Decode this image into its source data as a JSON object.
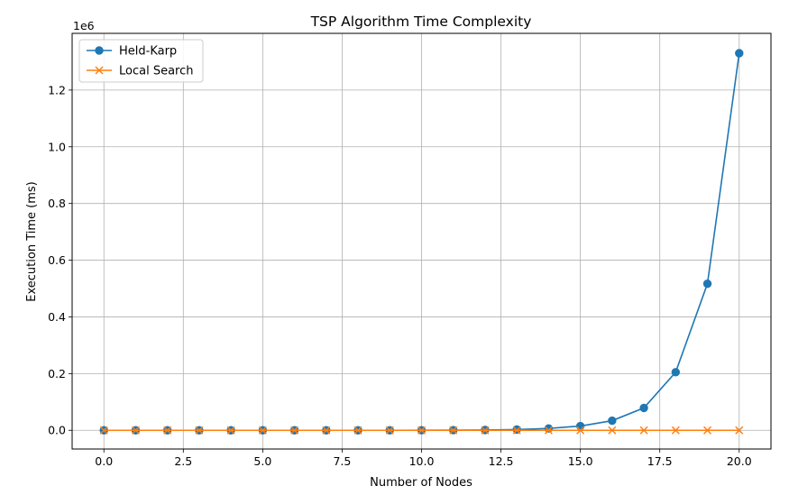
{
  "chart_data": {
    "type": "line",
    "title": "TSP Algorithm Time Complexity",
    "xlabel": "Number of Nodes",
    "ylabel": "Execution Time (ms)",
    "y_offset_label": "1e6",
    "xlim": [
      -1,
      21
    ],
    "ylim": [
      -0.066,
      1.4
    ],
    "xticks": [
      0,
      2.5,
      5,
      7.5,
      10,
      12.5,
      15,
      17.5,
      20
    ],
    "xtick_labels": [
      "0.0",
      "2.5",
      "5.0",
      "7.5",
      "10.0",
      "12.5",
      "15.0",
      "17.5",
      "20.0"
    ],
    "yticks": [
      0,
      0.2,
      0.4,
      0.6,
      0.8,
      1.0,
      1.2
    ],
    "ytick_labels": [
      "0.0",
      "0.2",
      "0.4",
      "0.6",
      "0.8",
      "1.0",
      "1.2"
    ],
    "grid": true,
    "legend_position": "top-left",
    "x": [
      0,
      1,
      2,
      3,
      4,
      5,
      6,
      7,
      8,
      9,
      10,
      11,
      12,
      13,
      14,
      15,
      16,
      17,
      18,
      19,
      20
    ],
    "series": [
      {
        "name": "Held-Karp",
        "marker": "circle",
        "color": "#1f77b4",
        "values": [
          0,
          0,
          0,
          0,
          0,
          0,
          0,
          0,
          0,
          0,
          0.0002,
          0.0005,
          0.0012,
          0.0028,
          0.0065,
          0.015,
          0.034,
          0.079,
          0.205,
          0.517,
          1.33
        ]
      },
      {
        "name": "Local Search",
        "marker": "x",
        "color": "#ff7f0e",
        "values": [
          0,
          0,
          0,
          0,
          0,
          0,
          0,
          0,
          0,
          0,
          0,
          0,
          0,
          0,
          0,
          0,
          0,
          0,
          0,
          0,
          0
        ]
      }
    ]
  }
}
